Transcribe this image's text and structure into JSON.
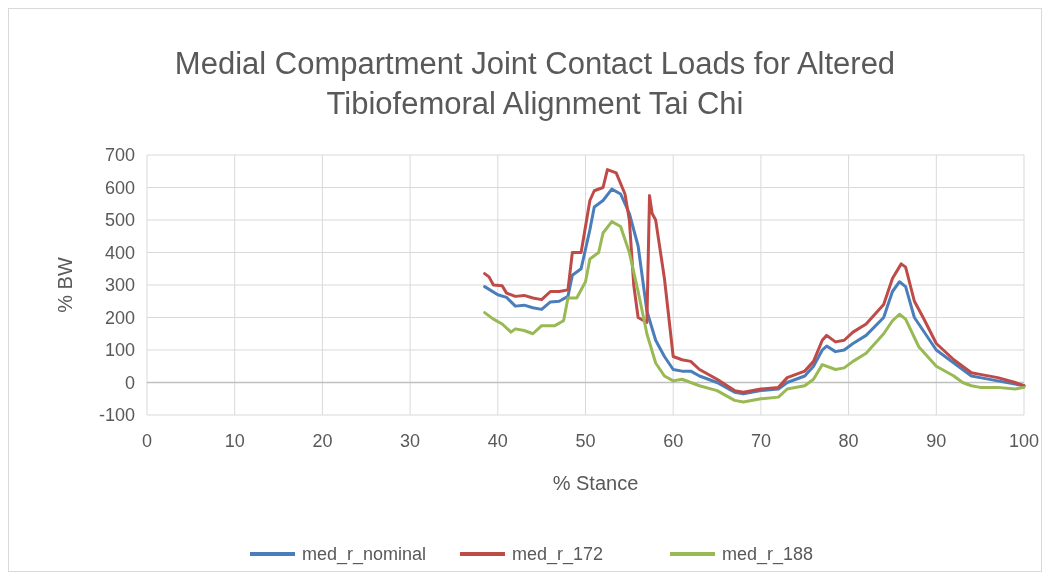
{
  "chart_data": {
    "type": "line",
    "title": "Medial Compartment Joint Contact Loads for Altered Tibiofemoral Alignment Tai Chi",
    "xlabel": "% Stance",
    "ylabel": "% BW",
    "xlim": [
      0,
      100
    ],
    "xticks": [
      0,
      10,
      20,
      30,
      40,
      50,
      60,
      70,
      80,
      90,
      100
    ],
    "ylim": [
      -100,
      700
    ],
    "yticks": [
      -100,
      0,
      100,
      200,
      300,
      400,
      500,
      600,
      700
    ],
    "grid": true,
    "legend": "bottom",
    "marker": "none",
    "line_style": "solid",
    "series": [
      {
        "name": "med_r_nominal",
        "color": "#4a7ebb",
        "x": [
          38.5,
          40,
          41,
          42,
          43,
          44,
          45,
          46,
          47,
          48,
          48.5,
          49.5,
          50.5,
          51,
          52,
          53,
          54,
          55,
          56,
          57,
          58,
          59,
          60,
          61,
          62,
          63,
          65,
          67,
          68,
          70,
          72,
          73,
          75,
          76,
          77,
          77.5,
          78.5,
          79.5,
          80.5,
          82,
          84,
          85,
          85.8,
          86.5,
          87.5,
          88.5,
          90,
          92,
          93,
          94,
          95,
          97,
          99,
          100
        ],
        "values": [
          295,
          270,
          262,
          235,
          238,
          230,
          225,
          248,
          250,
          265,
          330,
          350,
          470,
          540,
          560,
          595,
          580,
          520,
          420,
          220,
          130,
          80,
          40,
          35,
          35,
          20,
          0,
          -30,
          -35,
          -25,
          -20,
          0,
          20,
          50,
          100,
          112,
          95,
          100,
          120,
          145,
          200,
          280,
          310,
          295,
          200,
          160,
          100,
          60,
          40,
          20,
          15,
          5,
          -5,
          -10
        ]
      },
      {
        "name": "med_r_172",
        "color": "#be4b48",
        "x": [
          38.5,
          39,
          39.5,
          40.5,
          41,
          42,
          43,
          44,
          45,
          46,
          47,
          48,
          48.5,
          49.5,
          50,
          50.5,
          51,
          52,
          52.5,
          53.5,
          54.5,
          55,
          55.5,
          56,
          57,
          57.3,
          57.6,
          58,
          59,
          60,
          61,
          62,
          63,
          65,
          67,
          68,
          70,
          72,
          73,
          75,
          76,
          77,
          77.5,
          78.5,
          79.5,
          80.5,
          82,
          84,
          85,
          86,
          86.5,
          87.5,
          88.5,
          90,
          92,
          93,
          94,
          95,
          97,
          99,
          100
        ],
        "values": [
          335,
          325,
          300,
          298,
          275,
          265,
          268,
          260,
          255,
          280,
          280,
          285,
          400,
          400,
          480,
          560,
          590,
          600,
          655,
          645,
          580,
          500,
          300,
          200,
          185,
          575,
          520,
          500,
          320,
          80,
          70,
          65,
          40,
          10,
          -25,
          -30,
          -20,
          -15,
          15,
          35,
          65,
          130,
          145,
          125,
          130,
          155,
          180,
          240,
          320,
          365,
          355,
          250,
          200,
          120,
          70,
          50,
          30,
          25,
          15,
          0,
          -10
        ]
      },
      {
        "name": "med_r_188",
        "color": "#98b954",
        "x": [
          38.5,
          39.5,
          40.5,
          41.5,
          42,
          43,
          44,
          45,
          46.5,
          47.5,
          48,
          49,
          50,
          50.5,
          51.5,
          52,
          53,
          54,
          55,
          56,
          57,
          58,
          59,
          60,
          61,
          62,
          63,
          65,
          67,
          68,
          70,
          72,
          73,
          75,
          76,
          77,
          78.5,
          79.5,
          80.5,
          82,
          84,
          85,
          85.8,
          86.5,
          88,
          90,
          92,
          93,
          94,
          95,
          97,
          99,
          100
        ],
        "values": [
          215,
          195,
          180,
          155,
          165,
          160,
          150,
          175,
          175,
          190,
          260,
          260,
          310,
          380,
          400,
          460,
          495,
          480,
          400,
          280,
          150,
          60,
          20,
          5,
          10,
          0,
          -10,
          -25,
          -55,
          -60,
          -50,
          -45,
          -20,
          -10,
          10,
          55,
          40,
          45,
          65,
          90,
          150,
          190,
          210,
          195,
          110,
          50,
          20,
          0,
          -10,
          -15,
          -15,
          -20,
          -15
        ]
      }
    ]
  }
}
